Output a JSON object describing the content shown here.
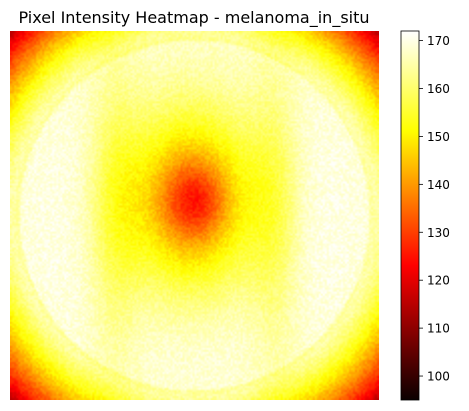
{
  "chart_data": {
    "type": "heatmap",
    "title": "Pixel Intensity Heatmap - melanoma_in_situ",
    "xlabel": "",
    "ylabel": "",
    "axes_visible": false,
    "colormap": "hot",
    "colorbar": {
      "range": [
        95,
        172
      ],
      "ticks": [
        100,
        110,
        120,
        130,
        140,
        150,
        160,
        170
      ],
      "tick_labels": [
        "100",
        "110",
        "120",
        "130",
        "140",
        "150",
        "160",
        "170"
      ]
    },
    "field_summary": {
      "description_free": true,
      "center_value": 133,
      "central_blob_value": 145,
      "bright_ring_value": 171,
      "corner_value": 115,
      "edge_value": 155
    }
  },
  "colors": {
    "background": "#ffffff",
    "text": "#000000",
    "map_stops": [
      "#000000",
      "#ff0000",
      "#ffff00",
      "#ffffff"
    ]
  }
}
